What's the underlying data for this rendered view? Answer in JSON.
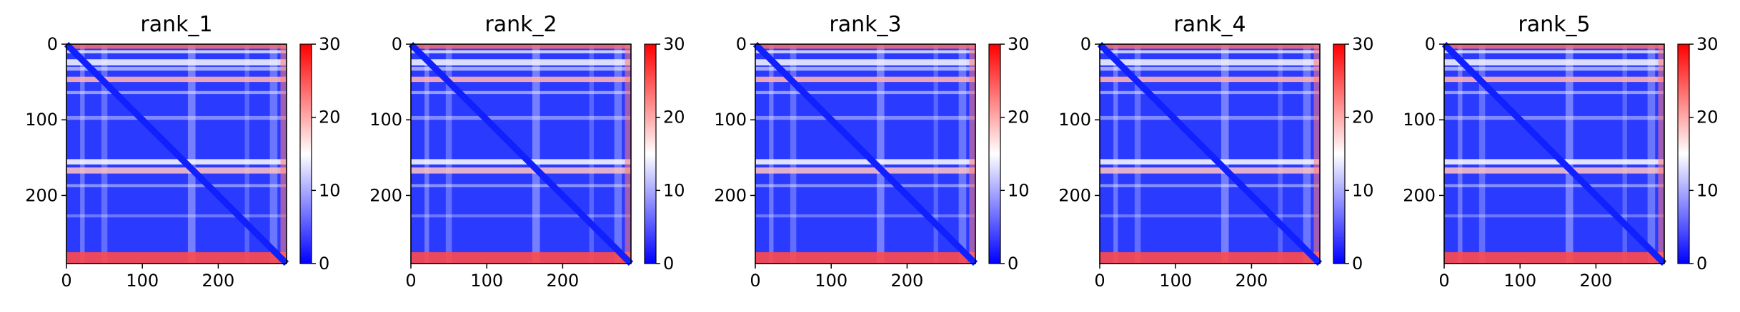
{
  "chart_data": [
    {
      "type": "heatmap",
      "title": "rank_1",
      "xlim": [
        0,
        290
      ],
      "ylim": [
        290,
        0
      ],
      "xticks": [
        "0",
        "100",
        "200"
      ],
      "yticks": [
        "0",
        "100",
        "200"
      ],
      "colorbar": {
        "min": 0,
        "max": 30,
        "ticks": [
          "0",
          "10",
          "20",
          "30"
        ],
        "colormap": "bwr"
      }
    },
    {
      "type": "heatmap",
      "title": "rank_2",
      "xlim": [
        0,
        290
      ],
      "ylim": [
        290,
        0
      ],
      "xticks": [
        "0",
        "100",
        "200"
      ],
      "yticks": [
        "0",
        "100",
        "200"
      ],
      "colorbar": {
        "min": 0,
        "max": 30,
        "ticks": [
          "0",
          "10",
          "20",
          "30"
        ],
        "colormap": "bwr"
      }
    },
    {
      "type": "heatmap",
      "title": "rank_3",
      "xlim": [
        0,
        290
      ],
      "ylim": [
        290,
        0
      ],
      "xticks": [
        "0",
        "100",
        "200"
      ],
      "yticks": [
        "0",
        "100",
        "200"
      ],
      "colorbar": {
        "min": 0,
        "max": 30,
        "ticks": [
          "0",
          "10",
          "20",
          "30"
        ],
        "colormap": "bwr"
      }
    },
    {
      "type": "heatmap",
      "title": "rank_4",
      "xlim": [
        0,
        290
      ],
      "ylim": [
        290,
        0
      ],
      "xticks": [
        "0",
        "100",
        "200"
      ],
      "yticks": [
        "0",
        "100",
        "200"
      ],
      "colorbar": {
        "min": 0,
        "max": 30,
        "ticks": [
          "0",
          "10",
          "20",
          "30"
        ],
        "colormap": "bwr"
      }
    },
    {
      "type": "heatmap",
      "title": "rank_5",
      "xlim": [
        0,
        290
      ],
      "ylim": [
        290,
        0
      ],
      "xticks": [
        "0",
        "100",
        "200"
      ],
      "yticks": [
        "0",
        "100",
        "200"
      ],
      "colorbar": {
        "min": 0,
        "max": 30,
        "ticks": [
          "0",
          "10",
          "20",
          "30"
        ],
        "colormap": "bwr"
      }
    }
  ],
  "colors": {
    "low": "#0000ff",
    "mid": "#ffffff",
    "high": "#ff0000"
  }
}
